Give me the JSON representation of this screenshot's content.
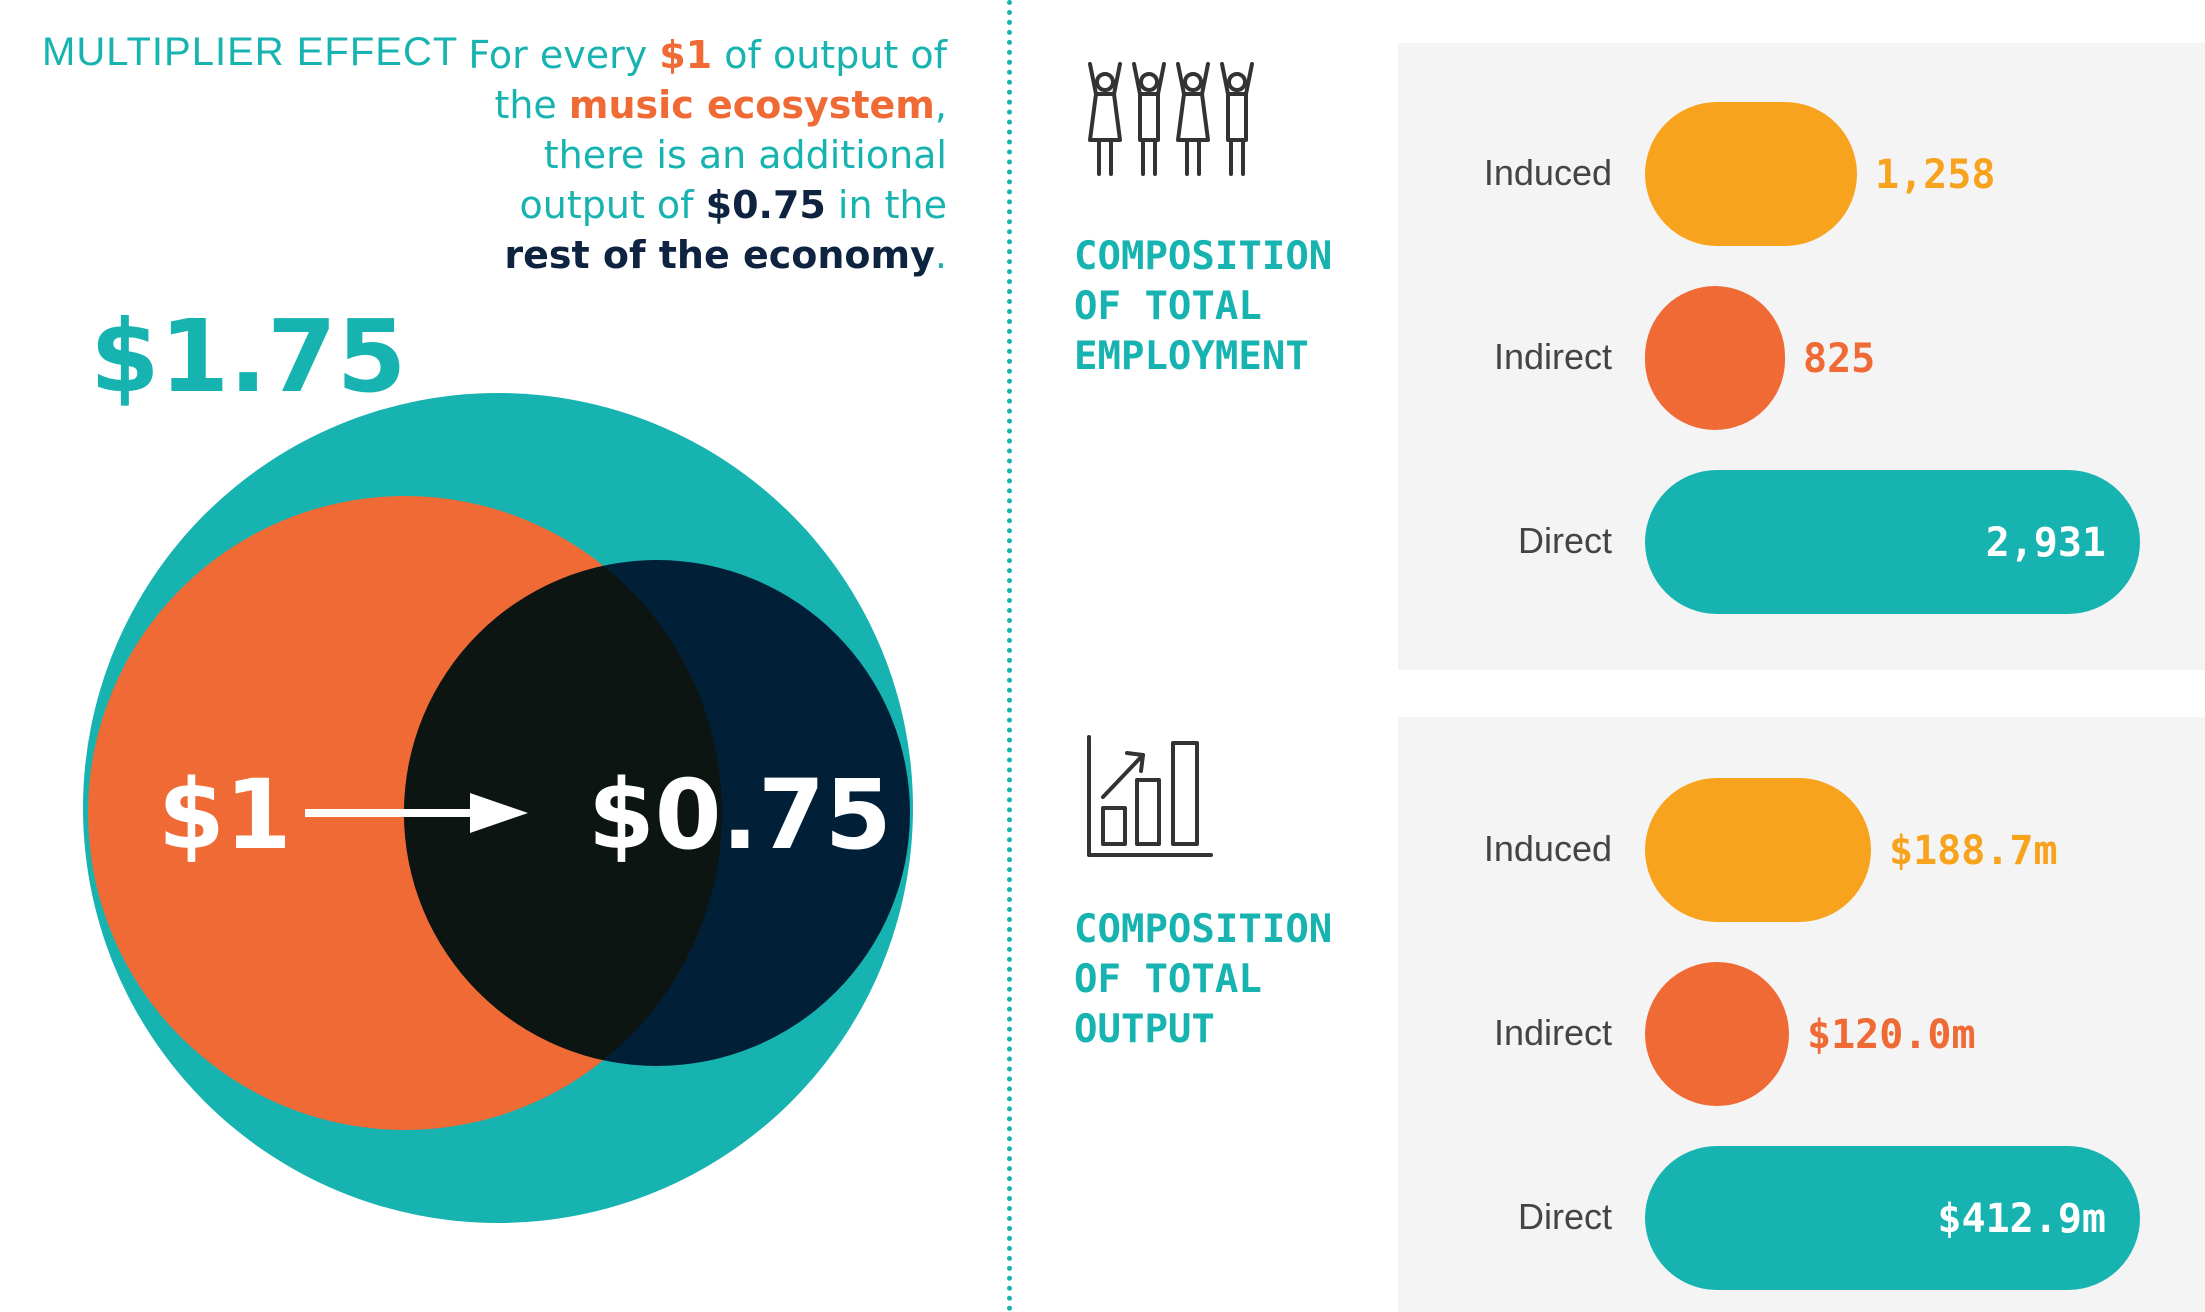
{
  "multiplier": {
    "title": "MULTIPLIER EFFECT",
    "desc": {
      "p1": "For every ",
      "p2": "$1",
      "p3": " of output of the ",
      "p4": "music ecosystem",
      "p5": ", there is an additional output of ",
      "p6": "$0.75",
      "p7": " in the ",
      "p8": "rest of the economy",
      "p9": "."
    },
    "total": "$1.75",
    "inner_label": "$1",
    "outer_label": "$0.75"
  },
  "colors": {
    "teal": "#17b3b0",
    "orange": "#ef6a34",
    "yellow": "#f8a31e",
    "navy": "#021f38",
    "overlap": "#0d1513"
  },
  "chart_data": [
    {
      "type": "bar",
      "title": "COMPOSITION OF TOTAL EMPLOYMENT",
      "icon": "people-celebrating-icon",
      "categories": [
        "Induced",
        "Indirect",
        "Direct"
      ],
      "values": [
        1258,
        825,
        2931
      ],
      "value_labels": [
        "1,258",
        "825",
        "2,931"
      ],
      "colors": [
        "#f8a31e",
        "#ef6a34",
        "#17b3b0"
      ]
    },
    {
      "type": "bar",
      "title": "COMPOSITION OF TOTAL OUTPUT",
      "icon": "bar-chart-growth-icon",
      "categories": [
        "Induced",
        "Indirect",
        "Direct"
      ],
      "values": [
        188.7,
        120.0,
        412.9
      ],
      "value_labels": [
        "$188.7m",
        "$120.0m",
        "$412.9m"
      ],
      "colors": [
        "#f8a31e",
        "#ef6a34",
        "#17b3b0"
      ]
    }
  ]
}
